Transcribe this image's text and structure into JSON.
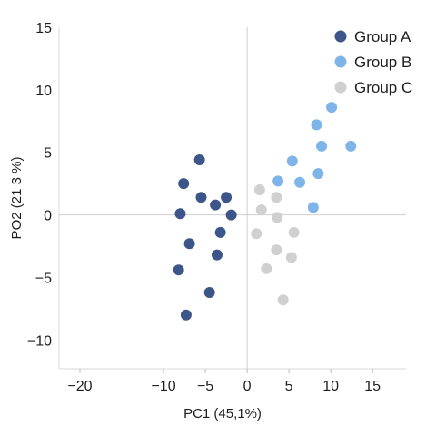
{
  "chart_data": {
    "type": "scatter",
    "title": "",
    "xlabel": "PC1 (45,1%)",
    "ylabel": "PO2 (21 3 %)",
    "xlim": [
      -22.5,
      19
    ],
    "ylim": [
      -12.3,
      15
    ],
    "xticks": [
      -20,
      -10,
      -5,
      0,
      5,
      10,
      15
    ],
    "xtick_labels": [
      "−20",
      "−10",
      "−5",
      "0",
      "5",
      "10",
      "15"
    ],
    "yticks": [
      15,
      10,
      5,
      0,
      -5,
      -10
    ],
    "ytick_labels": [
      "15",
      "10",
      "5",
      "0",
      "−5",
      "−10"
    ],
    "grid": false,
    "zero_lines": true,
    "legend_position": "top-right",
    "series": [
      {
        "name": "Group A",
        "color": "#3d5689",
        "points": [
          {
            "x": -5.7,
            "y": 4.4
          },
          {
            "x": -7.6,
            "y": 2.5
          },
          {
            "x": -5.5,
            "y": 1.4
          },
          {
            "x": -2.5,
            "y": 1.4
          },
          {
            "x": -3.8,
            "y": 0.8
          },
          {
            "x": -8.0,
            "y": 0.1
          },
          {
            "x": -1.9,
            "y": 0.0
          },
          {
            "x": -3.2,
            "y": -1.4
          },
          {
            "x": -6.9,
            "y": -2.3
          },
          {
            "x": -3.6,
            "y": -3.2
          },
          {
            "x": -8.2,
            "y": -4.4
          },
          {
            "x": -4.5,
            "y": -6.2
          },
          {
            "x": -7.3,
            "y": -8.0
          }
        ]
      },
      {
        "name": "Group B",
        "color": "#7fb4e8",
        "points": [
          {
            "x": 10.1,
            "y": 8.6
          },
          {
            "x": 8.3,
            "y": 7.2
          },
          {
            "x": 8.9,
            "y": 5.5
          },
          {
            "x": 12.4,
            "y": 5.5
          },
          {
            "x": 5.4,
            "y": 4.3
          },
          {
            "x": 8.5,
            "y": 3.3
          },
          {
            "x": 3.7,
            "y": 2.7
          },
          {
            "x": 6.3,
            "y": 2.6
          },
          {
            "x": 7.9,
            "y": 0.6
          }
        ]
      },
      {
        "name": "Group C",
        "color": "#d0d0d0",
        "points": [
          {
            "x": 1.5,
            "y": 2.0
          },
          {
            "x": 3.5,
            "y": 1.4
          },
          {
            "x": 1.7,
            "y": 0.4
          },
          {
            "x": 3.6,
            "y": -0.2
          },
          {
            "x": 1.1,
            "y": -1.5
          },
          {
            "x": 5.6,
            "y": -1.4
          },
          {
            "x": 3.5,
            "y": -2.8
          },
          {
            "x": 5.3,
            "y": -3.4
          },
          {
            "x": 2.3,
            "y": -4.3
          },
          {
            "x": 4.3,
            "y": -6.8
          }
        ]
      }
    ]
  }
}
